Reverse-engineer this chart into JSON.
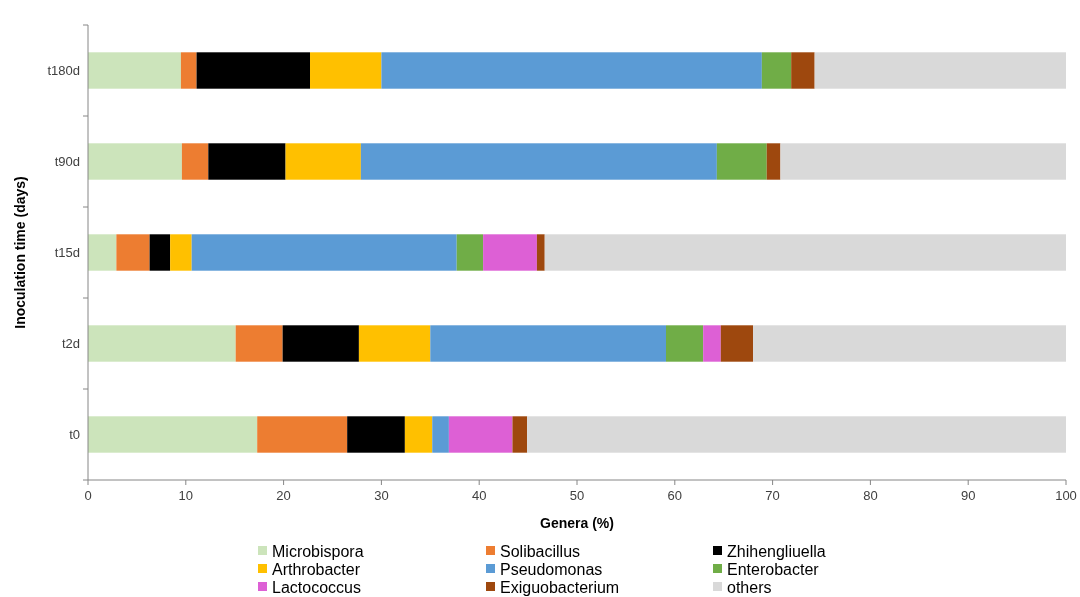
{
  "chart_data": {
    "type": "bar",
    "orientation": "horizontal",
    "stacked": true,
    "xlabel": "Genera (%)",
    "ylabel": "Inoculation time (days)",
    "categories": [
      "t180d",
      "t90d",
      "t15d",
      "t2d",
      "t0"
    ],
    "xlim": [
      0,
      100
    ],
    "xticks": [
      0,
      10,
      20,
      30,
      40,
      50,
      60,
      70,
      80,
      90,
      100
    ],
    "grid": false,
    "legend": "bottom",
    "series": [
      {
        "name": "Microbispora",
        "color": "#cce4bb",
        "values": [
          9.5,
          9.6,
          2.9,
          15.1,
          17.3
        ]
      },
      {
        "name": "Solibacillus",
        "color": "#ed7d31",
        "values": [
          1.6,
          2.7,
          3.4,
          4.8,
          9.2
        ]
      },
      {
        "name": "Zhihengliuella",
        "color": "#000000",
        "values": [
          11.6,
          7.9,
          2.1,
          7.8,
          5.9
        ]
      },
      {
        "name": "Arthrobacter",
        "color": "#ffc000",
        "values": [
          7.3,
          7.7,
          2.2,
          7.3,
          2.8
        ]
      },
      {
        "name": "Pseudomonas",
        "color": "#5b9bd5",
        "values": [
          38.9,
          36.4,
          27.1,
          24.1,
          1.7
        ]
      },
      {
        "name": "Enterobacter",
        "color": "#70ad47",
        "values": [
          3.0,
          5.1,
          2.7,
          3.8,
          0
        ]
      },
      {
        "name": "Lactococcus",
        "color": "#dd60d5",
        "values": [
          0,
          0,
          5.5,
          1.8,
          6.5
        ]
      },
      {
        "name": "Exiguobacterium",
        "color": "#9e480e",
        "values": [
          2.4,
          1.4,
          0.8,
          3.3,
          1.5
        ]
      },
      {
        "name": "others",
        "color": "#d9d9d9",
        "values": [
          25.7,
          29.2,
          53.3,
          32.0,
          55.1
        ]
      }
    ]
  }
}
